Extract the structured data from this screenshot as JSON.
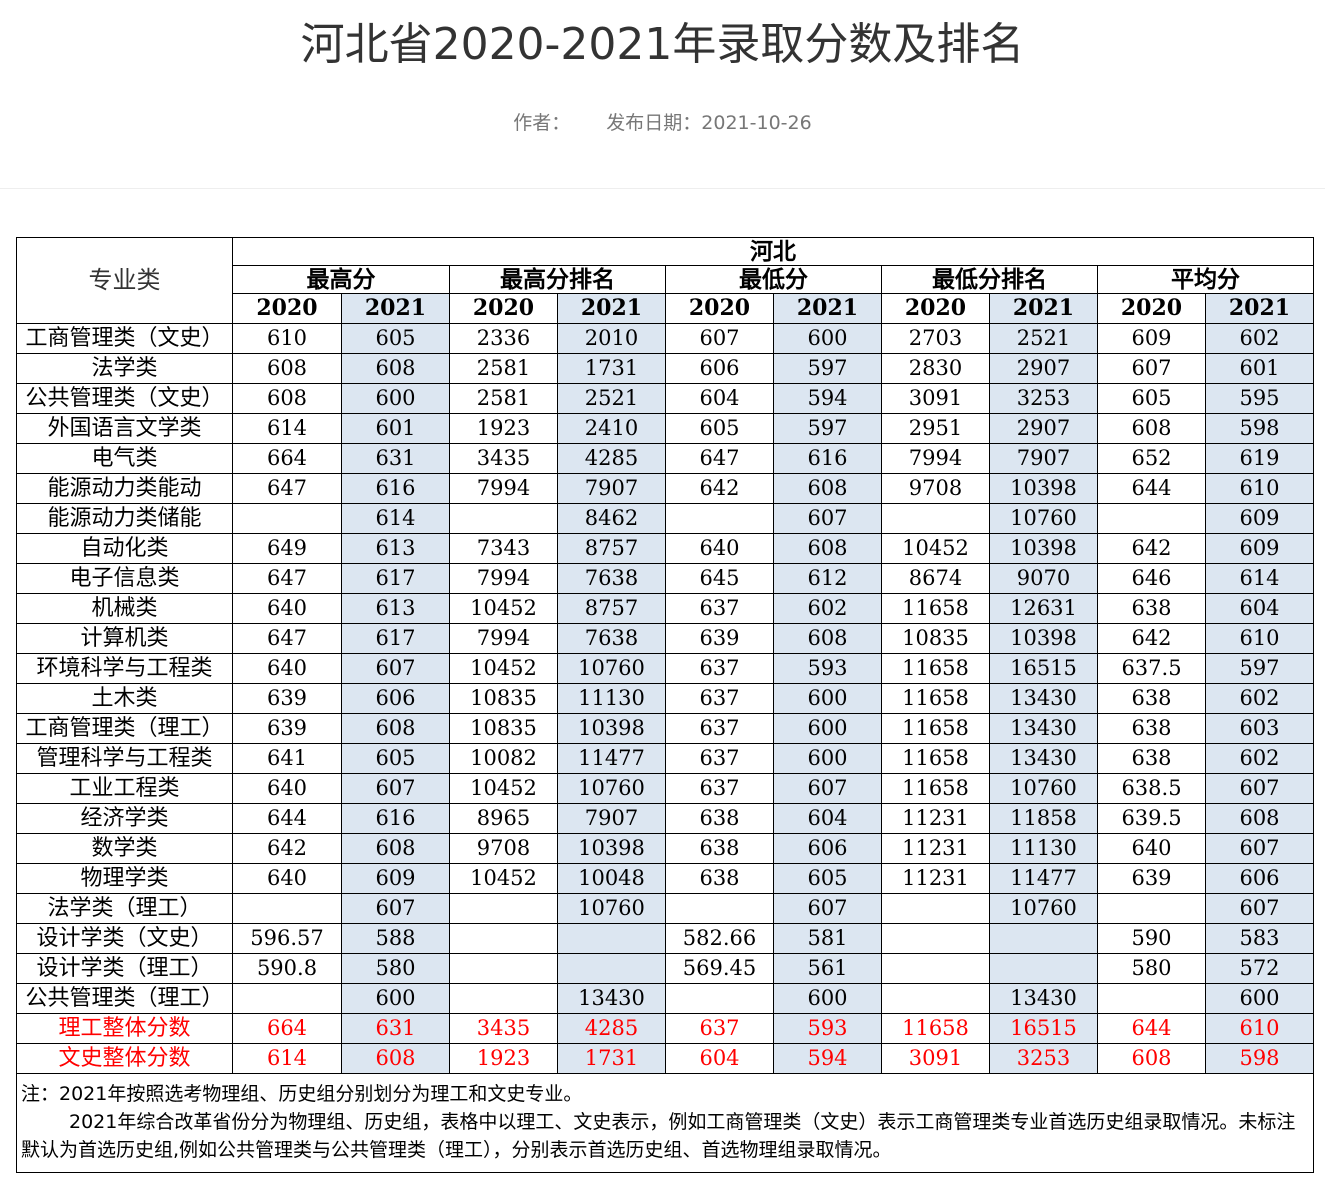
{
  "article": {
    "title": "河北省2020-2021年录取分数及排名",
    "author_label": "作者：",
    "date_label": "发布日期：2021-10-26"
  },
  "table": {
    "major_header": "专业类",
    "region": "河北",
    "groups": [
      "最高分",
      "最高分排名",
      "最低分",
      "最低分排名",
      "平均分"
    ],
    "years": [
      "2020",
      "2021"
    ],
    "rows": [
      {
        "major": "工商管理类（文史）",
        "values": [
          "610",
          "605",
          "2336",
          "2010",
          "607",
          "600",
          "2703",
          "2521",
          "609",
          "602"
        ]
      },
      {
        "major": "法学类",
        "values": [
          "608",
          "608",
          "2581",
          "1731",
          "606",
          "597",
          "2830",
          "2907",
          "607",
          "601"
        ]
      },
      {
        "major": "公共管理类（文史）",
        "values": [
          "608",
          "600",
          "2581",
          "2521",
          "604",
          "594",
          "3091",
          "3253",
          "605",
          "595"
        ]
      },
      {
        "major": "外国语言文学类",
        "values": [
          "614",
          "601",
          "1923",
          "2410",
          "605",
          "597",
          "2951",
          "2907",
          "608",
          "598"
        ]
      },
      {
        "major": "电气类",
        "values": [
          "664",
          "631",
          "3435",
          "4285",
          "647",
          "616",
          "7994",
          "7907",
          "652",
          "619"
        ]
      },
      {
        "major": "能源动力类能动",
        "values": [
          "647",
          "616",
          "7994",
          "7907",
          "642",
          "608",
          "9708",
          "10398",
          "644",
          "610"
        ]
      },
      {
        "major": "能源动力类储能",
        "values": [
          "",
          "614",
          "",
          "8462",
          "",
          "607",
          "",
          "10760",
          "",
          "609"
        ]
      },
      {
        "major": "自动化类",
        "values": [
          "649",
          "613",
          "7343",
          "8757",
          "640",
          "608",
          "10452",
          "10398",
          "642",
          "609"
        ]
      },
      {
        "major": "电子信息类",
        "values": [
          "647",
          "617",
          "7994",
          "7638",
          "645",
          "612",
          "8674",
          "9070",
          "646",
          "614"
        ]
      },
      {
        "major": "机械类",
        "values": [
          "640",
          "613",
          "10452",
          "8757",
          "637",
          "602",
          "11658",
          "12631",
          "638",
          "604"
        ]
      },
      {
        "major": "计算机类",
        "values": [
          "647",
          "617",
          "7994",
          "7638",
          "639",
          "608",
          "10835",
          "10398",
          "642",
          "610"
        ]
      },
      {
        "major": "环境科学与工程类",
        "values": [
          "640",
          "607",
          "10452",
          "10760",
          "637",
          "593",
          "11658",
          "16515",
          "637.5",
          "597"
        ]
      },
      {
        "major": "土木类",
        "values": [
          "639",
          "606",
          "10835",
          "11130",
          "637",
          "600",
          "11658",
          "13430",
          "638",
          "602"
        ]
      },
      {
        "major": "工商管理类（理工）",
        "values": [
          "639",
          "608",
          "10835",
          "10398",
          "637",
          "600",
          "11658",
          "13430",
          "638",
          "603"
        ]
      },
      {
        "major": "管理科学与工程类",
        "values": [
          "641",
          "605",
          "10082",
          "11477",
          "637",
          "600",
          "11658",
          "13430",
          "638",
          "602"
        ]
      },
      {
        "major": "工业工程类",
        "values": [
          "640",
          "607",
          "10452",
          "10760",
          "637",
          "607",
          "11658",
          "10760",
          "638.5",
          "607"
        ]
      },
      {
        "major": "经济学类",
        "values": [
          "644",
          "616",
          "8965",
          "7907",
          "638",
          "604",
          "11231",
          "11858",
          "639.5",
          "608"
        ]
      },
      {
        "major": "数学类",
        "values": [
          "642",
          "608",
          "9708",
          "10398",
          "638",
          "606",
          "11231",
          "11130",
          "640",
          "607"
        ]
      },
      {
        "major": "物理学类",
        "values": [
          "640",
          "609",
          "10452",
          "10048",
          "638",
          "605",
          "11231",
          "11477",
          "639",
          "606"
        ]
      },
      {
        "major": "法学类（理工）",
        "values": [
          "",
          "607",
          "",
          "10760",
          "",
          "607",
          "",
          "10760",
          "",
          "607"
        ]
      },
      {
        "major": "设计学类（文史）",
        "values": [
          "596.57",
          "588",
          "",
          "",
          "582.66",
          "581",
          "",
          "",
          "590",
          "583"
        ]
      },
      {
        "major": "设计学类（理工）",
        "values": [
          "590.8",
          "580",
          "",
          "",
          "569.45",
          "561",
          "",
          "",
          "580",
          "572"
        ]
      },
      {
        "major": "公共管理类（理工）",
        "values": [
          "",
          "600",
          "",
          "13430",
          "",
          "600",
          "",
          "13430",
          "",
          "600"
        ]
      }
    ],
    "summary_rows": [
      {
        "major": "理工整体分数",
        "values": [
          "664",
          "631",
          "3435",
          "4285",
          "637",
          "593",
          "11658",
          "16515",
          "644",
          "610"
        ]
      },
      {
        "major": "文史整体分数",
        "values": [
          "614",
          "608",
          "1923",
          "1731",
          "604",
          "594",
          "3091",
          "3253",
          "608",
          "598"
        ]
      }
    ],
    "note_line1": "注：2021年按照选考物理组、历史组分别划分为理工和文史专业。",
    "note_line2": "2021年综合改革省份分为物理组、历史组，表格中以理工、文史表示，例如工商管理类（文史）表示工商管理类专业首选历史组录取情况。未标注默认为首选历史组,例如公共管理类与公共管理类（理工），分别表示首选历史组、首选物理组录取情况。"
  },
  "colors": {
    "year_2021_bg": "#dce6f1",
    "summary_text": "#ff0000"
  }
}
